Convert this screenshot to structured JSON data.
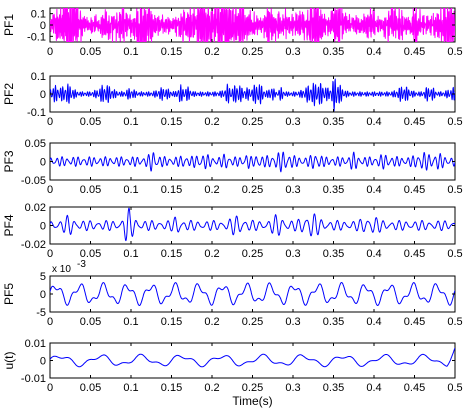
{
  "chart_data": [
    {
      "type": "line",
      "ylabel": "PF1",
      "xlim": [
        0,
        0.5
      ],
      "ylim": [
        -0.15,
        0.15
      ],
      "yticks": [
        -0.1,
        0,
        0.1
      ],
      "ytick_labels": [
        "-0.1",
        "0",
        "0.1"
      ],
      "xticks": [
        0,
        0.05,
        0.1,
        0.15,
        0.2,
        0.25,
        0.3,
        0.35,
        0.4,
        0.45,
        0.5
      ],
      "xtick_labels": [
        "0",
        "0.05",
        "0.1",
        "0.15",
        "0.2",
        "0.25",
        "0.3",
        "0.35",
        "0.4",
        "0.45",
        "0.5"
      ],
      "color": "#ff00ff",
      "signal": {
        "amplitude": 0.06,
        "peak": 0.12,
        "freq": 620,
        "burst": 40
      }
    },
    {
      "type": "line",
      "ylabel": "PF2",
      "xlim": [
        0,
        0.5
      ],
      "ylim": [
        -0.1,
        0.1
      ],
      "yticks": [
        -0.1,
        0,
        0.1
      ],
      "ytick_labels": [
        "-0.1",
        "0",
        "0.1"
      ],
      "xticks": [
        0,
        0.05,
        0.1,
        0.15,
        0.2,
        0.25,
        0.3,
        0.35,
        0.4,
        0.45,
        0.5
      ],
      "xtick_labels": [
        "0",
        "0.05",
        "0.1",
        "0.15",
        "0.2",
        "0.25",
        "0.3",
        "0.35",
        "0.4",
        "0.45",
        "0.5"
      ],
      "color": "#0000ff",
      "signal": {
        "amplitude": 0.012,
        "peak": 0.04,
        "freq": 330,
        "burst": 24
      }
    },
    {
      "type": "line",
      "ylabel": "PF3",
      "xlim": [
        0,
        0.5
      ],
      "ylim": [
        -0.05,
        0.05
      ],
      "yticks": [
        -0.05,
        0,
        0.05
      ],
      "ytick_labels": [
        "-0.05",
        "0",
        "0.05"
      ],
      "xticks": [
        0,
        0.05,
        0.1,
        0.15,
        0.2,
        0.25,
        0.3,
        0.35,
        0.4,
        0.45,
        0.5
      ],
      "xtick_labels": [
        "0",
        "0.05",
        "0.1",
        "0.15",
        "0.2",
        "0.25",
        "0.3",
        "0.35",
        "0.4",
        "0.45",
        "0.5"
      ],
      "color": "#0000ff",
      "signal": {
        "amplitude": 0.012,
        "peak": 0.022,
        "freq": 150,
        "burst": 14
      }
    },
    {
      "type": "line",
      "ylabel": "PF4",
      "xlim": [
        0,
        0.5
      ],
      "ylim": [
        -0.02,
        0.02
      ],
      "yticks": [
        -0.02,
        0,
        0.02
      ],
      "ytick_labels": [
        "-0.02",
        "0",
        "0.02"
      ],
      "xticks": [
        0,
        0.05,
        0.1,
        0.15,
        0.2,
        0.25,
        0.3,
        0.35,
        0.4,
        0.45,
        0.5
      ],
      "xtick_labels": [
        "0",
        "0.05",
        "0.1",
        "0.15",
        "0.2",
        "0.25",
        "0.3",
        "0.35",
        "0.4",
        "0.45",
        "0.5"
      ],
      "color": "#0000ff",
      "signal": {
        "amplitude": 0.005,
        "peak": 0.011,
        "freq": 105,
        "burst": 9
      }
    },
    {
      "type": "line",
      "ylabel": "PF5",
      "xlim": [
        0,
        0.5
      ],
      "ylim": [
        -0.005,
        0.005
      ],
      "yticks": [
        -0.005,
        0,
        0.005
      ],
      "ytick_labels": [
        "-5",
        "0",
        "5"
      ],
      "exponent_label": "x 10",
      "exponent": "-3",
      "xticks": [
        0,
        0.05,
        0.1,
        0.15,
        0.2,
        0.25,
        0.3,
        0.35,
        0.4,
        0.45,
        0.5
      ],
      "xtick_labels": [
        "0",
        "0.05",
        "0.1",
        "0.15",
        "0.2",
        "0.25",
        "0.3",
        "0.35",
        "0.4",
        "0.45",
        "0.5"
      ],
      "color": "#0000ff",
      "signal": {
        "amplitude": 0.0022,
        "peak": 0.0042,
        "freq": 34,
        "burst": 5
      }
    },
    {
      "type": "line",
      "ylabel": "u(t)",
      "xlabel": "Time(s)",
      "xlim": [
        0,
        0.5
      ],
      "ylim": [
        -0.01,
        0.01
      ],
      "yticks": [
        -0.01,
        0,
        0.01
      ],
      "ytick_labels": [
        "-0.01",
        "0",
        "0.01"
      ],
      "xticks": [
        0,
        0.05,
        0.1,
        0.15,
        0.2,
        0.25,
        0.3,
        0.35,
        0.4,
        0.45,
        0.5
      ],
      "xtick_labels": [
        "0",
        "0.05",
        "0.1",
        "0.15",
        "0.2",
        "0.25",
        "0.3",
        "0.35",
        "0.4",
        "0.45",
        "0.5"
      ],
      "color": "#0000ff",
      "signal": {
        "amplitude": 0.0025,
        "peak": 0.009,
        "freq": 20,
        "burst": 3
      }
    }
  ]
}
